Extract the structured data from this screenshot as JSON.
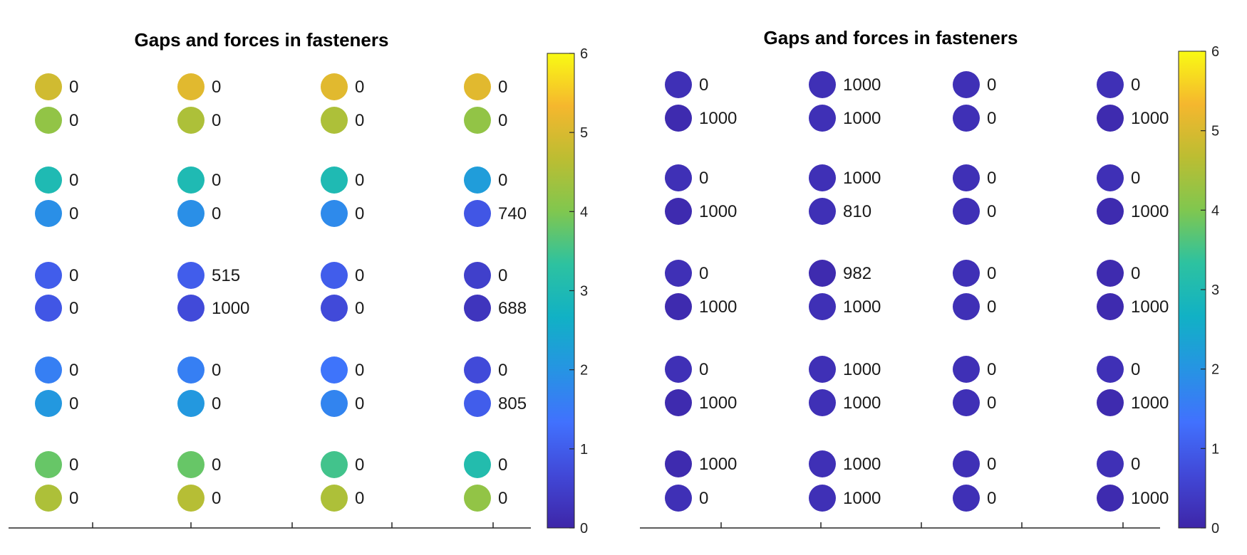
{
  "colors": {
    "parula": [
      "#3e26a8",
      "#4148d7",
      "#4171fe",
      "#2694e3",
      "#11b1c5",
      "#2dc2a0",
      "#80c74f",
      "#bcbd32",
      "#f5b72e",
      "#f9fa14"
    ]
  },
  "chart_data": [
    {
      "type": "scatter",
      "title": "Gaps and forces in fasteners",
      "colorbar": {
        "label": "",
        "ylim": [
          0,
          6
        ],
        "ticks": [
          "0",
          "1",
          "2",
          "3",
          "4",
          "5",
          "6"
        ]
      },
      "grid": false,
      "rows": [
        {
          "values": [
            4.9,
            5.1,
            5.1,
            5.1
          ],
          "labels": [
            "0",
            "0",
            "0",
            "0"
          ]
        },
        {
          "values": [
            4.2,
            4.5,
            4.5,
            4.2
          ],
          "labels": [
            "0",
            "0",
            "0",
            "0"
          ]
        },
        {
          "values": [
            3.0,
            3.0,
            3.0,
            2.2
          ],
          "labels": [
            "0",
            "0",
            "0",
            "0"
          ]
        },
        {
          "values": [
            1.9,
            1.9,
            1.8,
            0.9
          ],
          "labels": [
            "0",
            "0",
            "0",
            "740"
          ]
        },
        {
          "values": [
            1.0,
            1.0,
            1.0,
            0.5
          ],
          "labels": [
            "0",
            "515",
            "0",
            "0"
          ]
        },
        {
          "values": [
            0.9,
            0.7,
            0.7,
            0.3
          ],
          "labels": [
            "0",
            "1000",
            "0",
            "688"
          ]
        },
        {
          "values": [
            1.6,
            1.6,
            1.4,
            0.7
          ],
          "labels": [
            "0",
            "0",
            "0",
            "0"
          ]
        },
        {
          "values": [
            2.1,
            2.1,
            1.7,
            1.0
          ],
          "labels": [
            "0",
            "0",
            "0",
            "805"
          ]
        },
        {
          "values": [
            3.8,
            3.8,
            3.5,
            3.1
          ],
          "labels": [
            "0",
            "0",
            "0",
            "0"
          ]
        },
        {
          "values": [
            4.5,
            4.6,
            4.5,
            4.2
          ],
          "labels": [
            "0",
            "0",
            "0",
            "0"
          ]
        }
      ]
    },
    {
      "type": "scatter",
      "title": "Gaps and forces in fasteners",
      "colorbar": {
        "label": "",
        "ylim": [
          0,
          6
        ],
        "ticks": [
          "0",
          "1",
          "2",
          "3",
          "4",
          "5",
          "6"
        ]
      },
      "grid": false,
      "rows": [
        {
          "values": [
            0.2,
            0.2,
            0.2,
            0.2
          ],
          "labels": [
            "0",
            "1000",
            "0",
            "0"
          ]
        },
        {
          "values": [
            0.1,
            0.2,
            0.2,
            0.1
          ],
          "labels": [
            "1000",
            "1000",
            "0",
            "1000"
          ]
        },
        {
          "values": [
            0.2,
            0.2,
            0.2,
            0.2
          ],
          "labels": [
            "0",
            "1000",
            "0",
            "0"
          ]
        },
        {
          "values": [
            0.1,
            0.2,
            0.2,
            0.1
          ],
          "labels": [
            "1000",
            "810",
            "0",
            "1000"
          ]
        },
        {
          "values": [
            0.2,
            0.1,
            0.2,
            0.1
          ],
          "labels": [
            "0",
            "982",
            "0",
            "0"
          ]
        },
        {
          "values": [
            0.1,
            0.2,
            0.2,
            0.1
          ],
          "labels": [
            "1000",
            "1000",
            "0",
            "1000"
          ]
        },
        {
          "values": [
            0.2,
            0.2,
            0.2,
            0.2
          ],
          "labels": [
            "0",
            "1000",
            "0",
            "0"
          ]
        },
        {
          "values": [
            0.1,
            0.2,
            0.2,
            0.1
          ],
          "labels": [
            "1000",
            "1000",
            "0",
            "1000"
          ]
        },
        {
          "values": [
            0.1,
            0.2,
            0.2,
            0.2
          ],
          "labels": [
            "1000",
            "1000",
            "0",
            "0"
          ]
        },
        {
          "values": [
            0.2,
            0.2,
            0.2,
            0.1
          ],
          "labels": [
            "0",
            "1000",
            "0",
            "1000"
          ]
        }
      ]
    }
  ]
}
